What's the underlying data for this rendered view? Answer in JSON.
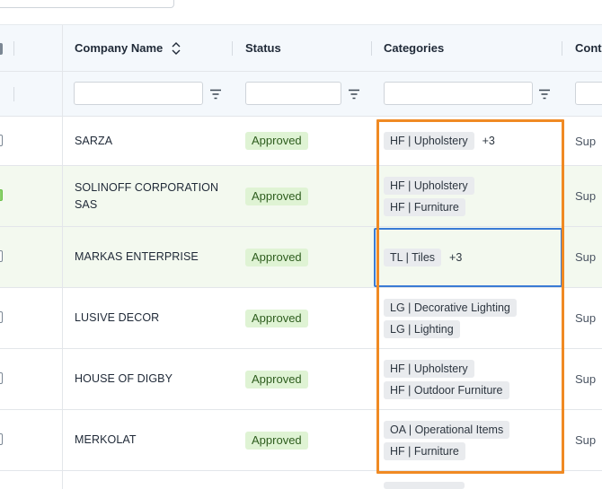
{
  "columns": {
    "company_name": "Company Name",
    "status": "Status",
    "categories": "Categories",
    "contact": "Conta"
  },
  "filters": {
    "company_name": "",
    "status": "",
    "categories": "",
    "contact": ""
  },
  "rows": [
    {
      "name": "SARZA",
      "status": "Approved",
      "tags": [
        "HF | Upholstery"
      ],
      "more": "+3",
      "contact": "Sup",
      "checked": false
    },
    {
      "name": "SOLINOFF CORPORATION SAS",
      "status": "Approved",
      "tags": [
        "HF | Upholstery",
        "HF | Furniture"
      ],
      "more": "",
      "contact": "Sup",
      "checked": true
    },
    {
      "name": "MARKAS ENTERPRISE",
      "status": "Approved",
      "tags": [
        "TL | Tiles"
      ],
      "more": "+3",
      "contact": "Sup",
      "checked": false
    },
    {
      "name": "LUSIVE DECOR",
      "status": "Approved",
      "tags": [
        "LG | Decorative Lighting",
        "LG | Lighting"
      ],
      "more": "",
      "contact": "Sup",
      "checked": false
    },
    {
      "name": "HOUSE OF DIGBY",
      "status": "Approved",
      "tags": [
        "HF | Upholstery",
        "HF | Outdoor Furniture"
      ],
      "more": "",
      "contact": "Sup",
      "checked": false
    },
    {
      "name": "MERKOLAT",
      "status": "Approved",
      "tags": [
        "OA | Operational Items",
        "HF | Furniture"
      ],
      "more": "",
      "contact": "Sup",
      "checked": false
    }
  ],
  "colors": {
    "approved_bg": "#dff3d4",
    "highlight_row": "#f3f9ef",
    "focus_border": "#3a7bd5",
    "annotation_border": "#f08a23"
  },
  "icons": {
    "sort": "sort-icon",
    "filter": "filter-icon"
  }
}
